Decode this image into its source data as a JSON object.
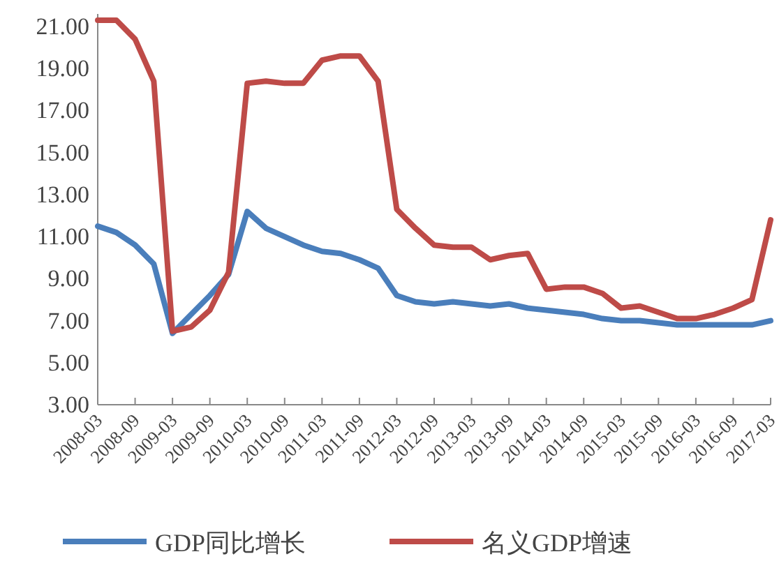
{
  "chart_data": {
    "type": "line",
    "categories": [
      "2008-03",
      null,
      "2008-09",
      null,
      "2009-03",
      null,
      "2009-09",
      null,
      "2010-03",
      null,
      "2010-09",
      null,
      "2011-03",
      null,
      "2011-09",
      null,
      "2012-03",
      null,
      "2012-09",
      null,
      "2013-03",
      null,
      "2013-09",
      null,
      "2014-03",
      null,
      "2014-09",
      null,
      "2015-03",
      null,
      "2015-09",
      null,
      "2016-03",
      null,
      "2016-09",
      null,
      "2017-03"
    ],
    "series": [
      {
        "name": "GDP同比增长",
        "color": "#4a7ebb",
        "values": [
          11.5,
          11.2,
          10.6,
          9.7,
          6.4,
          7.3,
          8.2,
          9.2,
          12.2,
          11.4,
          11.0,
          10.6,
          10.3,
          10.2,
          9.9,
          9.5,
          8.2,
          7.9,
          7.8,
          7.9,
          7.8,
          7.7,
          7.8,
          7.6,
          7.5,
          7.4,
          7.3,
          7.1,
          7.0,
          7.0,
          6.9,
          6.8,
          6.8,
          6.8,
          6.8,
          6.8,
          7.0
        ]
      },
      {
        "name": "名义GDP增速",
        "color": "#be4b48",
        "values": [
          21.3,
          21.3,
          20.4,
          18.4,
          6.5,
          6.7,
          7.5,
          9.3,
          18.3,
          18.4,
          18.3,
          18.3,
          19.4,
          19.6,
          19.6,
          18.4,
          12.3,
          11.4,
          10.6,
          10.5,
          10.5,
          9.9,
          10.1,
          10.2,
          8.5,
          8.6,
          8.6,
          8.3,
          7.6,
          7.7,
          7.4,
          7.1,
          7.1,
          7.3,
          7.6,
          8.0,
          11.8
        ]
      }
    ],
    "ylim": [
      3,
      21.6
    ],
    "yticks": [
      {
        "value": 3,
        "label": "3.00"
      },
      {
        "value": 5,
        "label": "5.00"
      },
      {
        "value": 7,
        "label": "7.00"
      },
      {
        "value": 9,
        "label": "9.00"
      },
      {
        "value": 11,
        "label": "11.00"
      },
      {
        "value": 13,
        "label": "13.00"
      },
      {
        "value": 15,
        "label": "15.00"
      },
      {
        "value": 17,
        "label": "17.00"
      },
      {
        "value": 19,
        "label": "19.00"
      },
      {
        "value": 21,
        "label": "21.00"
      }
    ],
    "grid": false,
    "legend": "bottom",
    "marker": "none",
    "line_style": "solid"
  }
}
